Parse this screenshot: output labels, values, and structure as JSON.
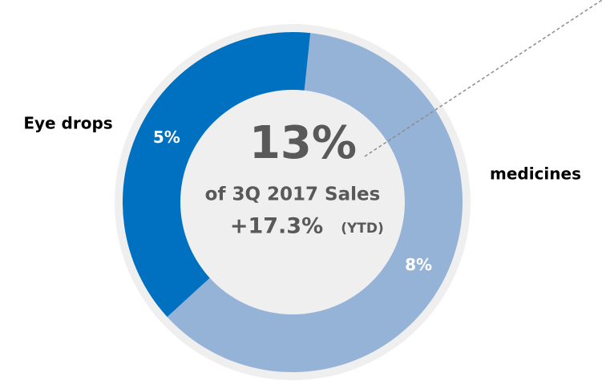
{
  "chart_data": {
    "type": "donut",
    "categories": [
      "Eye drops",
      "medicines"
    ],
    "values": [
      5,
      8
    ],
    "value_labels": [
      "5%",
      "8%"
    ],
    "colors": [
      "#0070c0",
      "#95b3d7"
    ],
    "annotations": [
      "13%",
      "of 3Q 2017 Sales",
      "+17.3%",
      "(YTD)"
    ]
  }
}
